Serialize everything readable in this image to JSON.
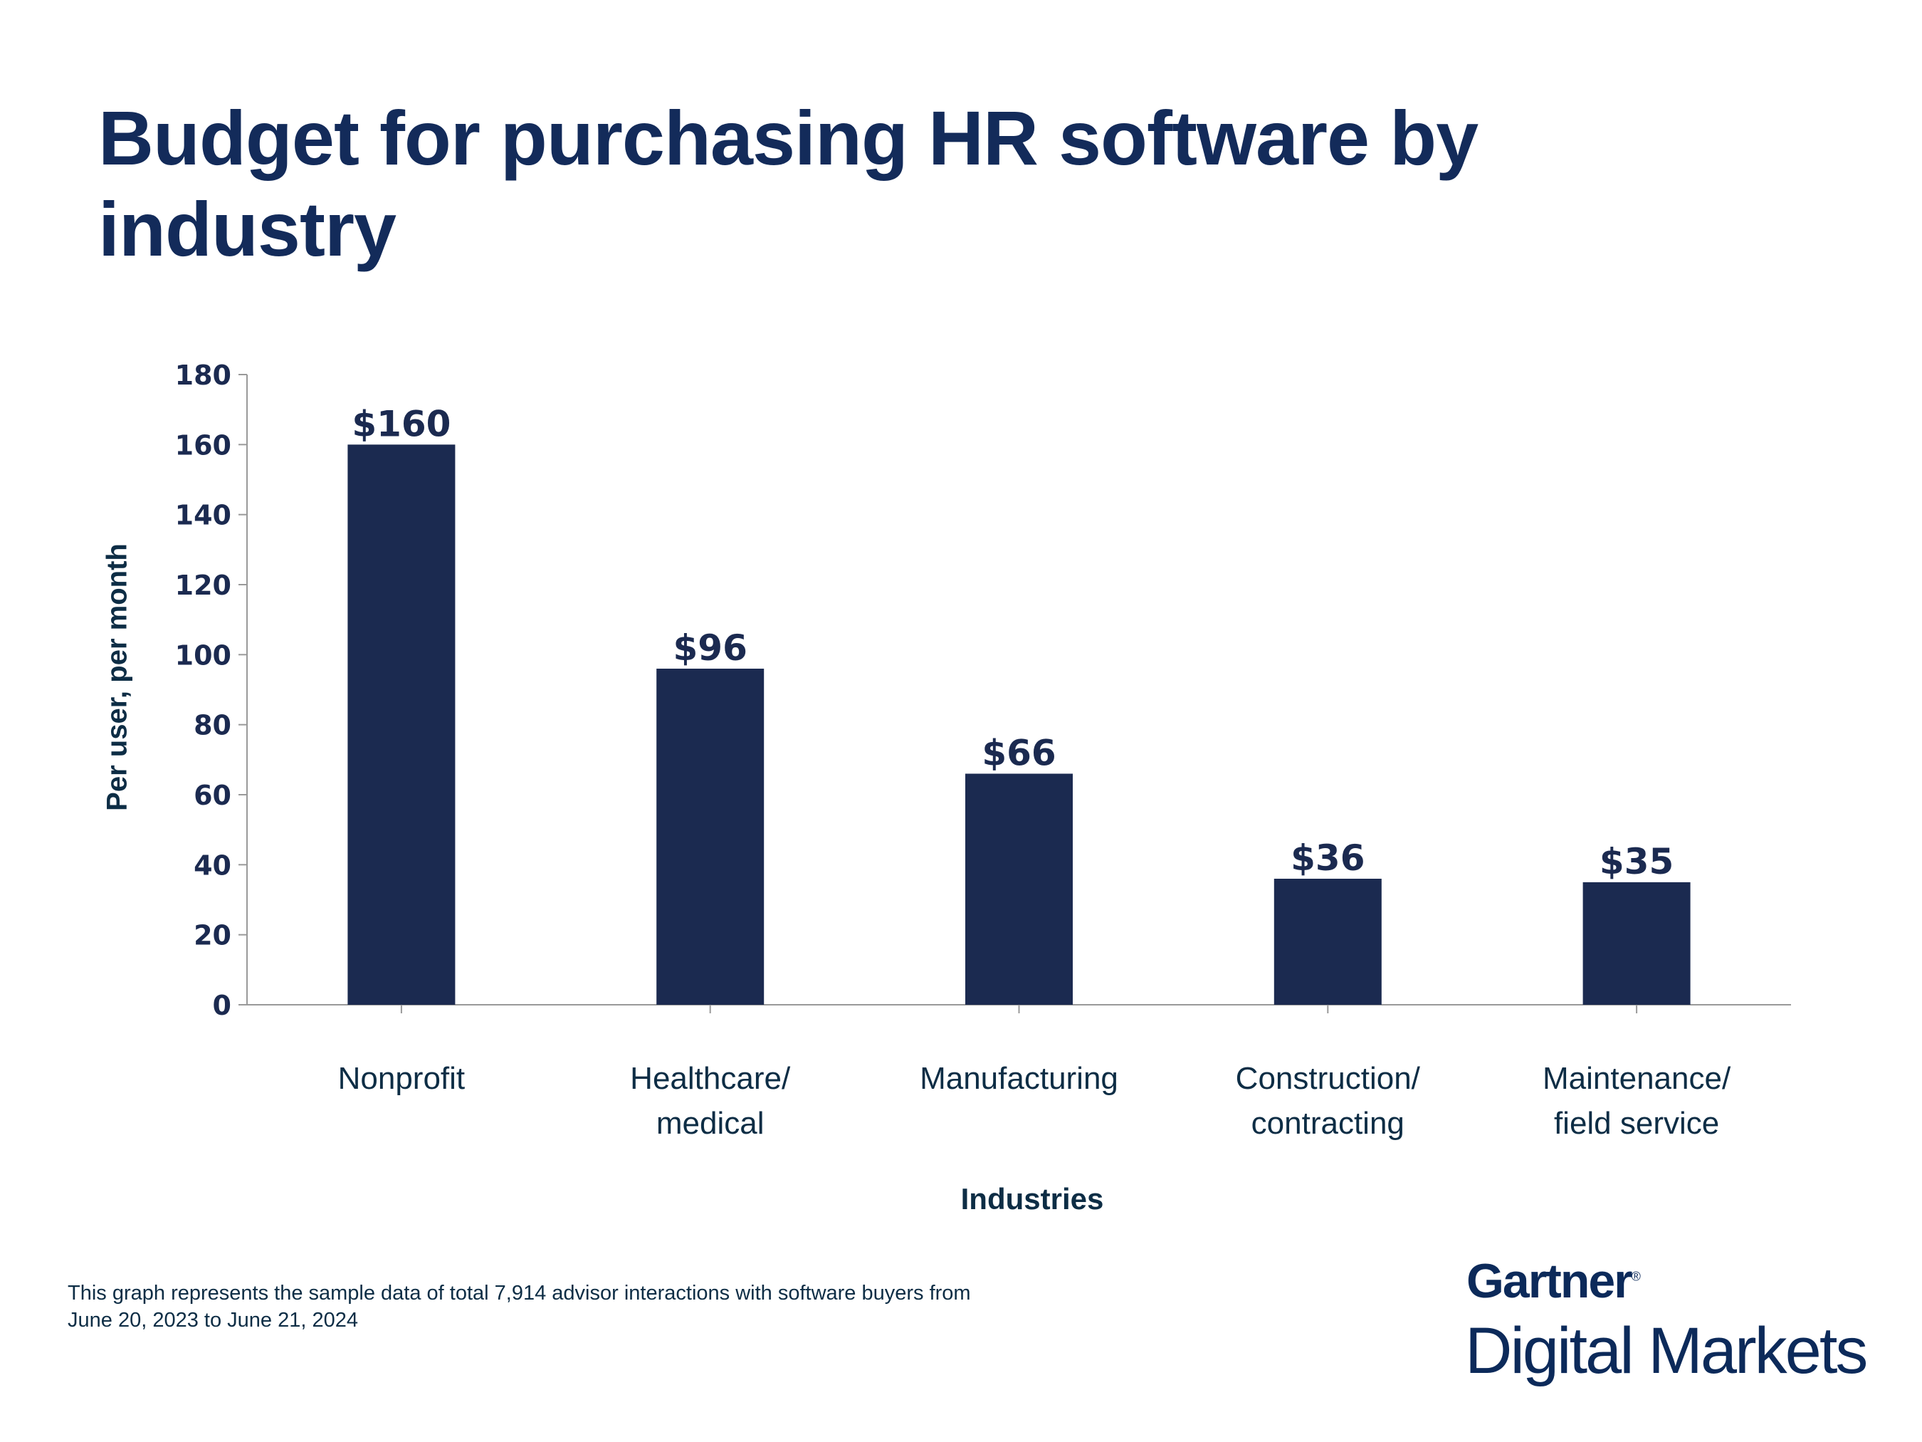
{
  "chart_data": {
    "type": "bar",
    "title": "Budget for purchasing HR software by industry",
    "xlabel": "Industries",
    "ylabel": "Per user, per month",
    "categories": [
      [
        "Nonprofit"
      ],
      [
        "Healthcare/",
        "medical"
      ],
      [
        "Manufacturing"
      ],
      [
        "Construction/",
        "contracting"
      ],
      [
        "Maintenance/",
        "field service"
      ]
    ],
    "values": [
      160,
      96,
      66,
      36,
      35
    ],
    "data_labels": [
      "$160",
      "$96",
      "$66",
      "$36",
      "$35"
    ],
    "ylim": [
      0,
      180
    ],
    "yticks": [
      0,
      20,
      40,
      60,
      80,
      100,
      120,
      140,
      160,
      180
    ],
    "grid": false,
    "bar_color": "#1b2a50"
  },
  "footnote": [
    "This graph represents the sample data of total 7,914 advisor interactions with software buyers from",
    "June 20, 2023 to June 21, 2024"
  ],
  "logo": {
    "brand": "Gartner",
    "mark": "®",
    "product": "Digital Markets"
  }
}
